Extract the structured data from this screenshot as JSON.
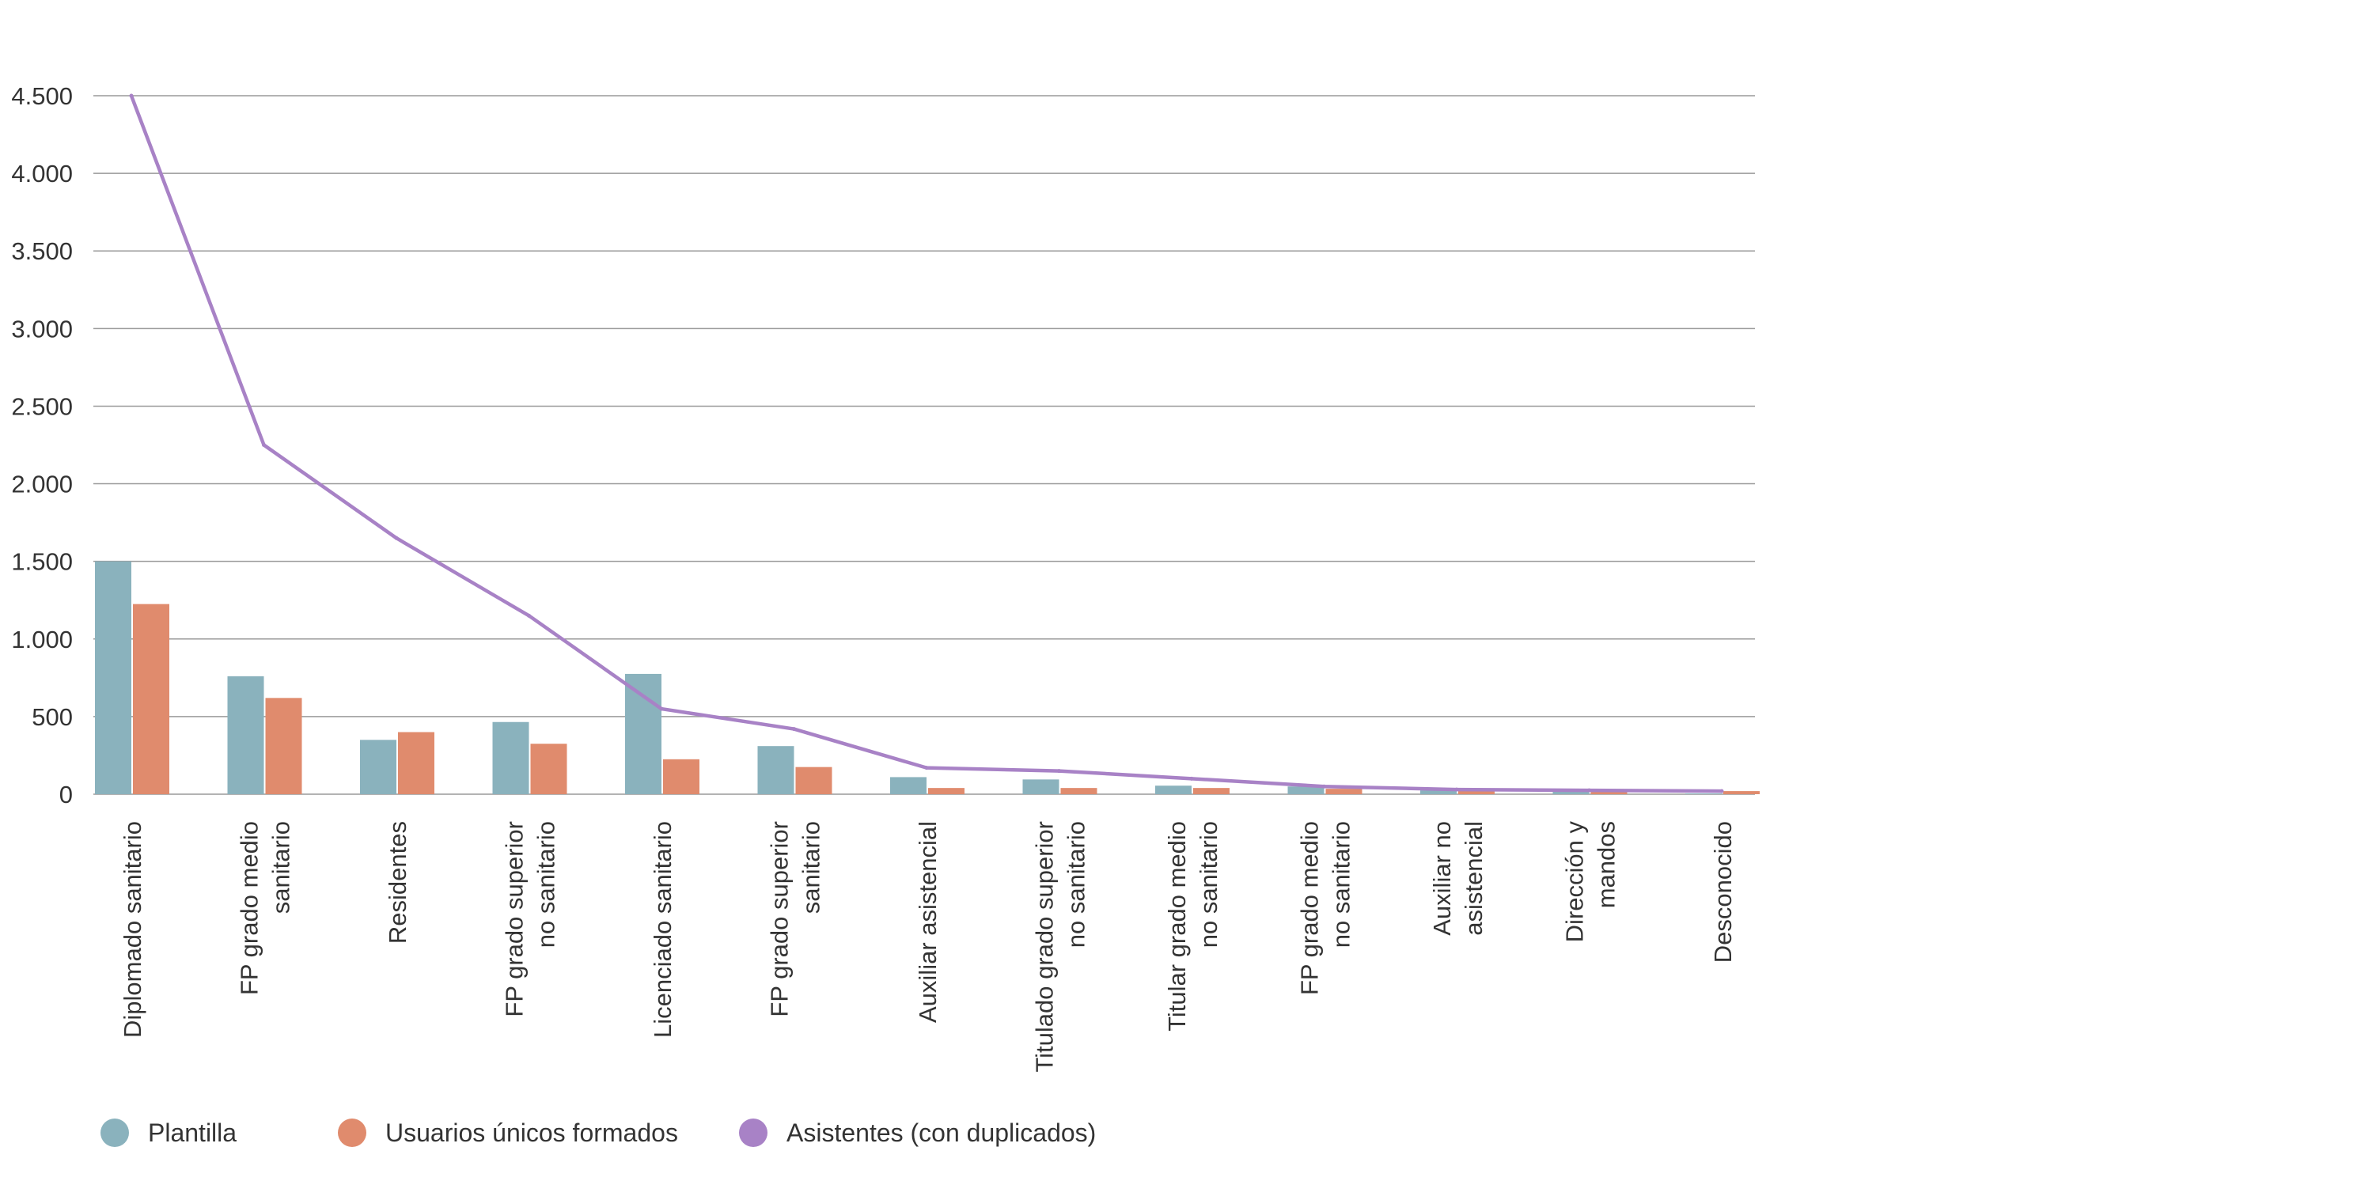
{
  "chart_data": {
    "type": "bar",
    "title": "",
    "xlabel": "",
    "ylabel": "",
    "ylim": [
      0,
      4500
    ],
    "yticks": [
      0,
      500,
      1000,
      1500,
      2000,
      2500,
      3000,
      3500,
      4000,
      4500
    ],
    "ytick_labels": [
      "0",
      "500",
      "1.000",
      "1.500",
      "2.000",
      "2.500",
      "3.000",
      "3.500",
      "4.000",
      "4.500"
    ],
    "grid": true,
    "legend_position": "bottom-left",
    "categories": [
      [
        "Diplomado sanitario"
      ],
      [
        "FP grado medio",
        "sanitario"
      ],
      [
        "Residentes"
      ],
      [
        "FP grado superior",
        "no sanitario"
      ],
      [
        "Licenciado sanitario"
      ],
      [
        "FP grado superior",
        "sanitario"
      ],
      [
        "Auxiliar asistencial"
      ],
      [
        "Titulado grado superior",
        "no sanitario"
      ],
      [
        "Titular grado medio",
        "no sanitario"
      ],
      [
        "FP grado medio",
        "no sanitario"
      ],
      [
        "Auxiliar no",
        "asistencial"
      ],
      [
        "Dirección y",
        "mandos"
      ],
      [
        "Desconocido"
      ]
    ],
    "series": [
      {
        "name": "Plantilla",
        "kind": "bar",
        "color": "#8AB2BD",
        "values": [
          1500,
          760,
          350,
          465,
          775,
          310,
          110,
          95,
          55,
          50,
          25,
          20,
          5
        ]
      },
      {
        "name": "Usuarios únicos formados",
        "kind": "bar",
        "color": "#E08B6D",
        "values": [
          1225,
          620,
          400,
          325,
          225,
          175,
          40,
          40,
          40,
          35,
          25,
          20,
          20
        ]
      },
      {
        "name": "Asistentes (con duplicados)",
        "kind": "line",
        "color": "#A882C6",
        "values": [
          4500,
          2250,
          1650,
          1150,
          550,
          420,
          170,
          150,
          100,
          50,
          30,
          25,
          20
        ]
      }
    ]
  }
}
